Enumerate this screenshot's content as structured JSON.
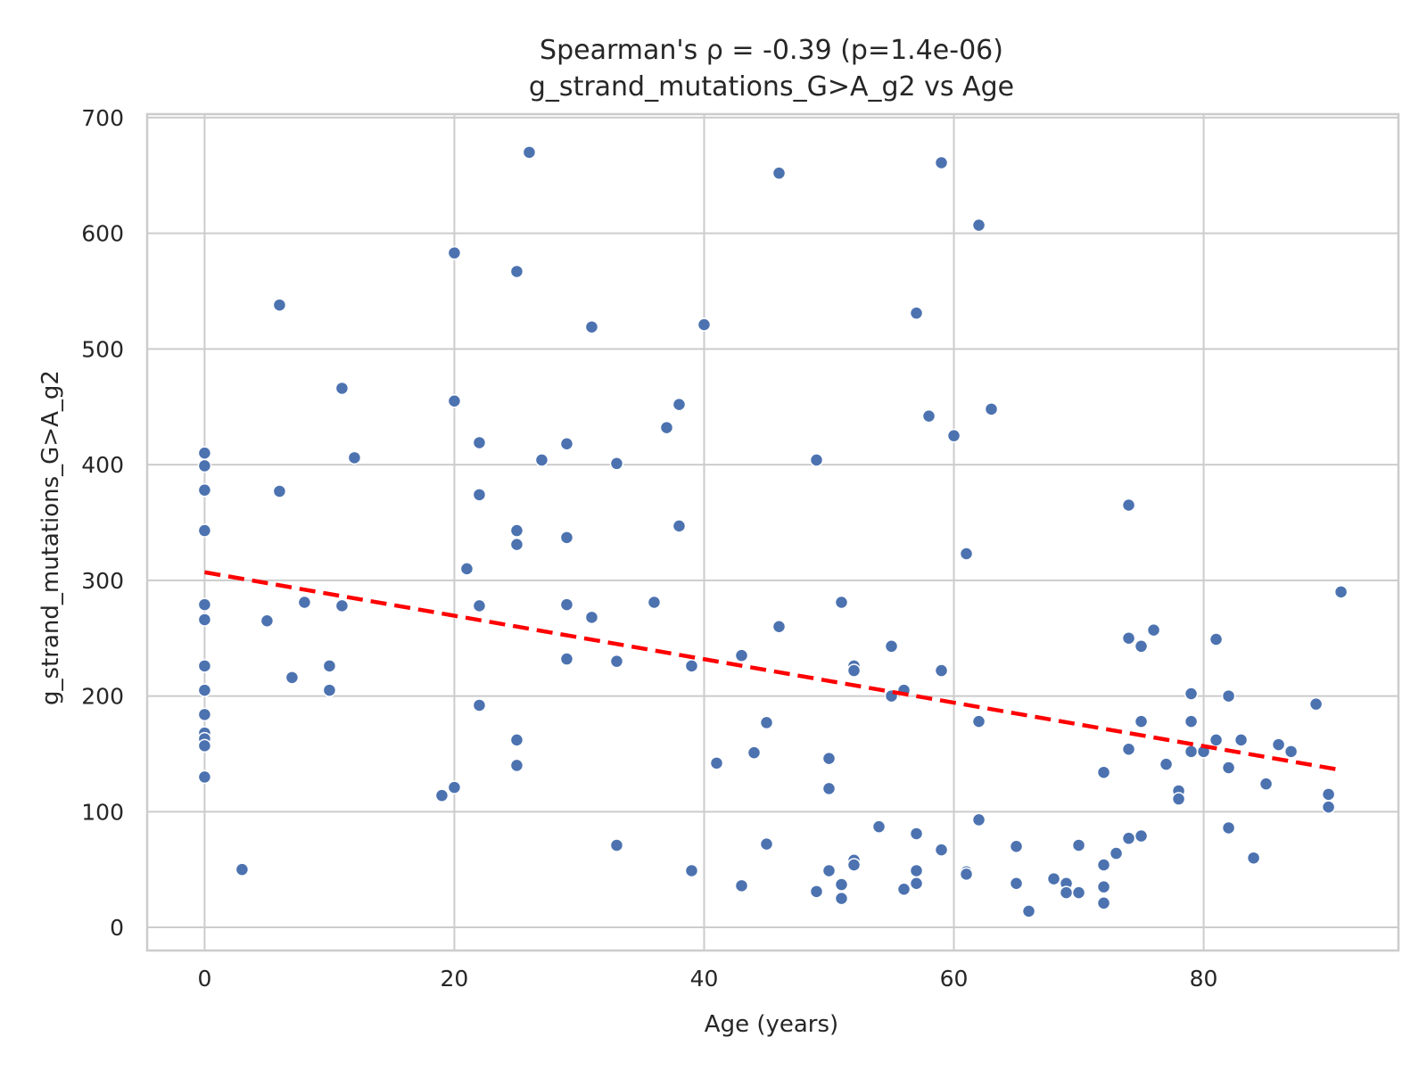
{
  "chart_data": {
    "type": "scatter",
    "title_line1": "Spearman's ρ = -0.39 (p=1.4e-06)",
    "title_line2": "g_strand_mutations_G>A_g2 vs Age",
    "xlabel": "Age (years)",
    "ylabel": "g_strand_mutations_G>A_g2",
    "xlim": [
      -4.6,
      95.6
    ],
    "ylim": [
      -20,
      703
    ],
    "xticks": [
      "0",
      "20",
      "40",
      "60",
      "80"
    ],
    "xtick_values": [
      0,
      20,
      40,
      60,
      80
    ],
    "yticks": [
      "0",
      "100",
      "200",
      "300",
      "400",
      "500",
      "600",
      "700"
    ],
    "ytick_values": [
      0,
      100,
      200,
      300,
      400,
      500,
      600,
      700
    ],
    "grid": true,
    "point_color": "#4c72b0",
    "trend_color": "#ff0000",
    "trend_line": {
      "x": [
        0,
        91
      ],
      "y": [
        307,
        136
      ],
      "style": "dashed"
    },
    "points": [
      [
        0,
        410
      ],
      [
        0,
        399
      ],
      [
        0,
        378
      ],
      [
        0,
        343
      ],
      [
        0,
        279
      ],
      [
        0,
        266
      ],
      [
        0,
        226
      ],
      [
        0,
        205
      ],
      [
        0,
        184
      ],
      [
        0,
        168
      ],
      [
        0,
        163
      ],
      [
        0,
        157
      ],
      [
        0,
        130
      ],
      [
        3,
        50
      ],
      [
        5,
        265
      ],
      [
        6,
        538
      ],
      [
        6,
        377
      ],
      [
        7,
        216
      ],
      [
        8,
        281
      ],
      [
        10,
        226
      ],
      [
        10,
        205
      ],
      [
        11,
        466
      ],
      [
        11,
        278
      ],
      [
        12,
        406
      ],
      [
        19,
        114
      ],
      [
        20,
        583
      ],
      [
        20,
        455
      ],
      [
        20,
        121
      ],
      [
        21,
        310
      ],
      [
        22,
        419
      ],
      [
        22,
        374
      ],
      [
        22,
        278
      ],
      [
        22,
        192
      ],
      [
        25,
        567
      ],
      [
        25,
        343
      ],
      [
        25,
        331
      ],
      [
        25,
        162
      ],
      [
        25,
        140
      ],
      [
        26,
        670
      ],
      [
        27,
        404
      ],
      [
        29,
        418
      ],
      [
        29,
        337
      ],
      [
        29,
        279
      ],
      [
        29,
        232
      ],
      [
        31,
        519
      ],
      [
        31,
        268
      ],
      [
        33,
        401
      ],
      [
        33,
        230
      ],
      [
        33,
        71
      ],
      [
        36,
        281
      ],
      [
        37,
        432
      ],
      [
        38,
        452
      ],
      [
        38,
        347
      ],
      [
        39,
        226
      ],
      [
        39,
        49
      ],
      [
        40,
        521
      ],
      [
        41,
        142
      ],
      [
        43,
        235
      ],
      [
        43,
        36
      ],
      [
        44,
        151
      ],
      [
        45,
        177
      ],
      [
        45,
        72
      ],
      [
        46,
        652
      ],
      [
        46,
        260
      ],
      [
        49,
        404
      ],
      [
        49,
        31
      ],
      [
        50,
        146
      ],
      [
        50,
        120
      ],
      [
        50,
        49
      ],
      [
        51,
        281
      ],
      [
        51,
        37
      ],
      [
        51,
        25
      ],
      [
        52,
        226
      ],
      [
        52,
        222
      ],
      [
        52,
        58
      ],
      [
        52,
        54
      ],
      [
        54,
        87
      ],
      [
        55,
        243
      ],
      [
        55,
        200
      ],
      [
        56,
        205
      ],
      [
        56,
        33
      ],
      [
        57,
        531
      ],
      [
        57,
        81
      ],
      [
        57,
        49
      ],
      [
        57,
        38
      ],
      [
        58,
        442
      ],
      [
        59,
        661
      ],
      [
        59,
        222
      ],
      [
        59,
        67
      ],
      [
        60,
        425
      ],
      [
        61,
        323
      ],
      [
        61,
        48
      ],
      [
        61,
        46
      ],
      [
        62,
        607
      ],
      [
        62,
        178
      ],
      [
        62,
        93
      ],
      [
        63,
        448
      ],
      [
        65,
        70
      ],
      [
        65,
        38
      ],
      [
        66,
        14
      ],
      [
        68,
        42
      ],
      [
        69,
        38
      ],
      [
        69,
        30
      ],
      [
        70,
        71
      ],
      [
        70,
        30
      ],
      [
        72,
        134
      ],
      [
        72,
        54
      ],
      [
        72,
        35
      ],
      [
        72,
        21
      ],
      [
        73,
        64
      ],
      [
        74,
        365
      ],
      [
        74,
        250
      ],
      [
        74,
        154
      ],
      [
        74,
        77
      ],
      [
        75,
        243
      ],
      [
        75,
        178
      ],
      [
        75,
        79
      ],
      [
        76,
        257
      ],
      [
        77,
        141
      ],
      [
        78,
        118
      ],
      [
        78,
        111
      ],
      [
        79,
        202
      ],
      [
        79,
        178
      ],
      [
        79,
        152
      ],
      [
        80,
        152
      ],
      [
        81,
        249
      ],
      [
        81,
        162
      ],
      [
        82,
        200
      ],
      [
        82,
        138
      ],
      [
        82,
        86
      ],
      [
        83,
        162
      ],
      [
        84,
        60
      ],
      [
        85,
        124
      ],
      [
        86,
        158
      ],
      [
        87,
        152
      ],
      [
        89,
        193
      ],
      [
        90,
        115
      ],
      [
        90,
        104
      ],
      [
        91,
        290
      ]
    ]
  }
}
